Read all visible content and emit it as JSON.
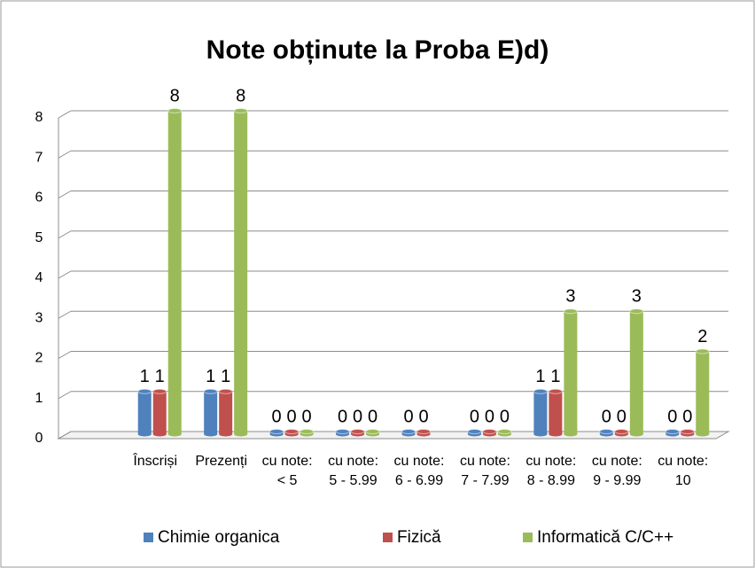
{
  "chart_data": {
    "type": "bar",
    "title": "Note obținute la Proba E)d)",
    "categories": [
      "Înscriși",
      "Prezenți",
      "cu note:\n< 5",
      "cu note:\n5 - 5.99",
      "cu note:\n6 - 6.99",
      "cu note:\n7 - 7.99",
      "cu note:\n8 - 8.99",
      "cu note:\n9 - 9.99",
      "cu note:\n10"
    ],
    "series": [
      {
        "name": "Chimie organica",
        "color": "#4f81bd",
        "values": [
          1,
          1,
          0,
          0,
          0,
          0,
          1,
          0,
          0
        ]
      },
      {
        "name": "Fizică",
        "color": "#c0504d",
        "values": [
          1,
          1,
          0,
          0,
          0,
          0,
          1,
          0,
          0
        ]
      },
      {
        "name": "Informatică C/C++",
        "color": "#9bbb59",
        "values": [
          8,
          8,
          0,
          0,
          null,
          0,
          3,
          3,
          2
        ]
      }
    ],
    "ylim": [
      0,
      8
    ],
    "yticks": [
      0,
      1,
      2,
      3,
      4,
      5,
      6,
      7,
      8
    ],
    "grid": true,
    "legend": "bottom"
  }
}
